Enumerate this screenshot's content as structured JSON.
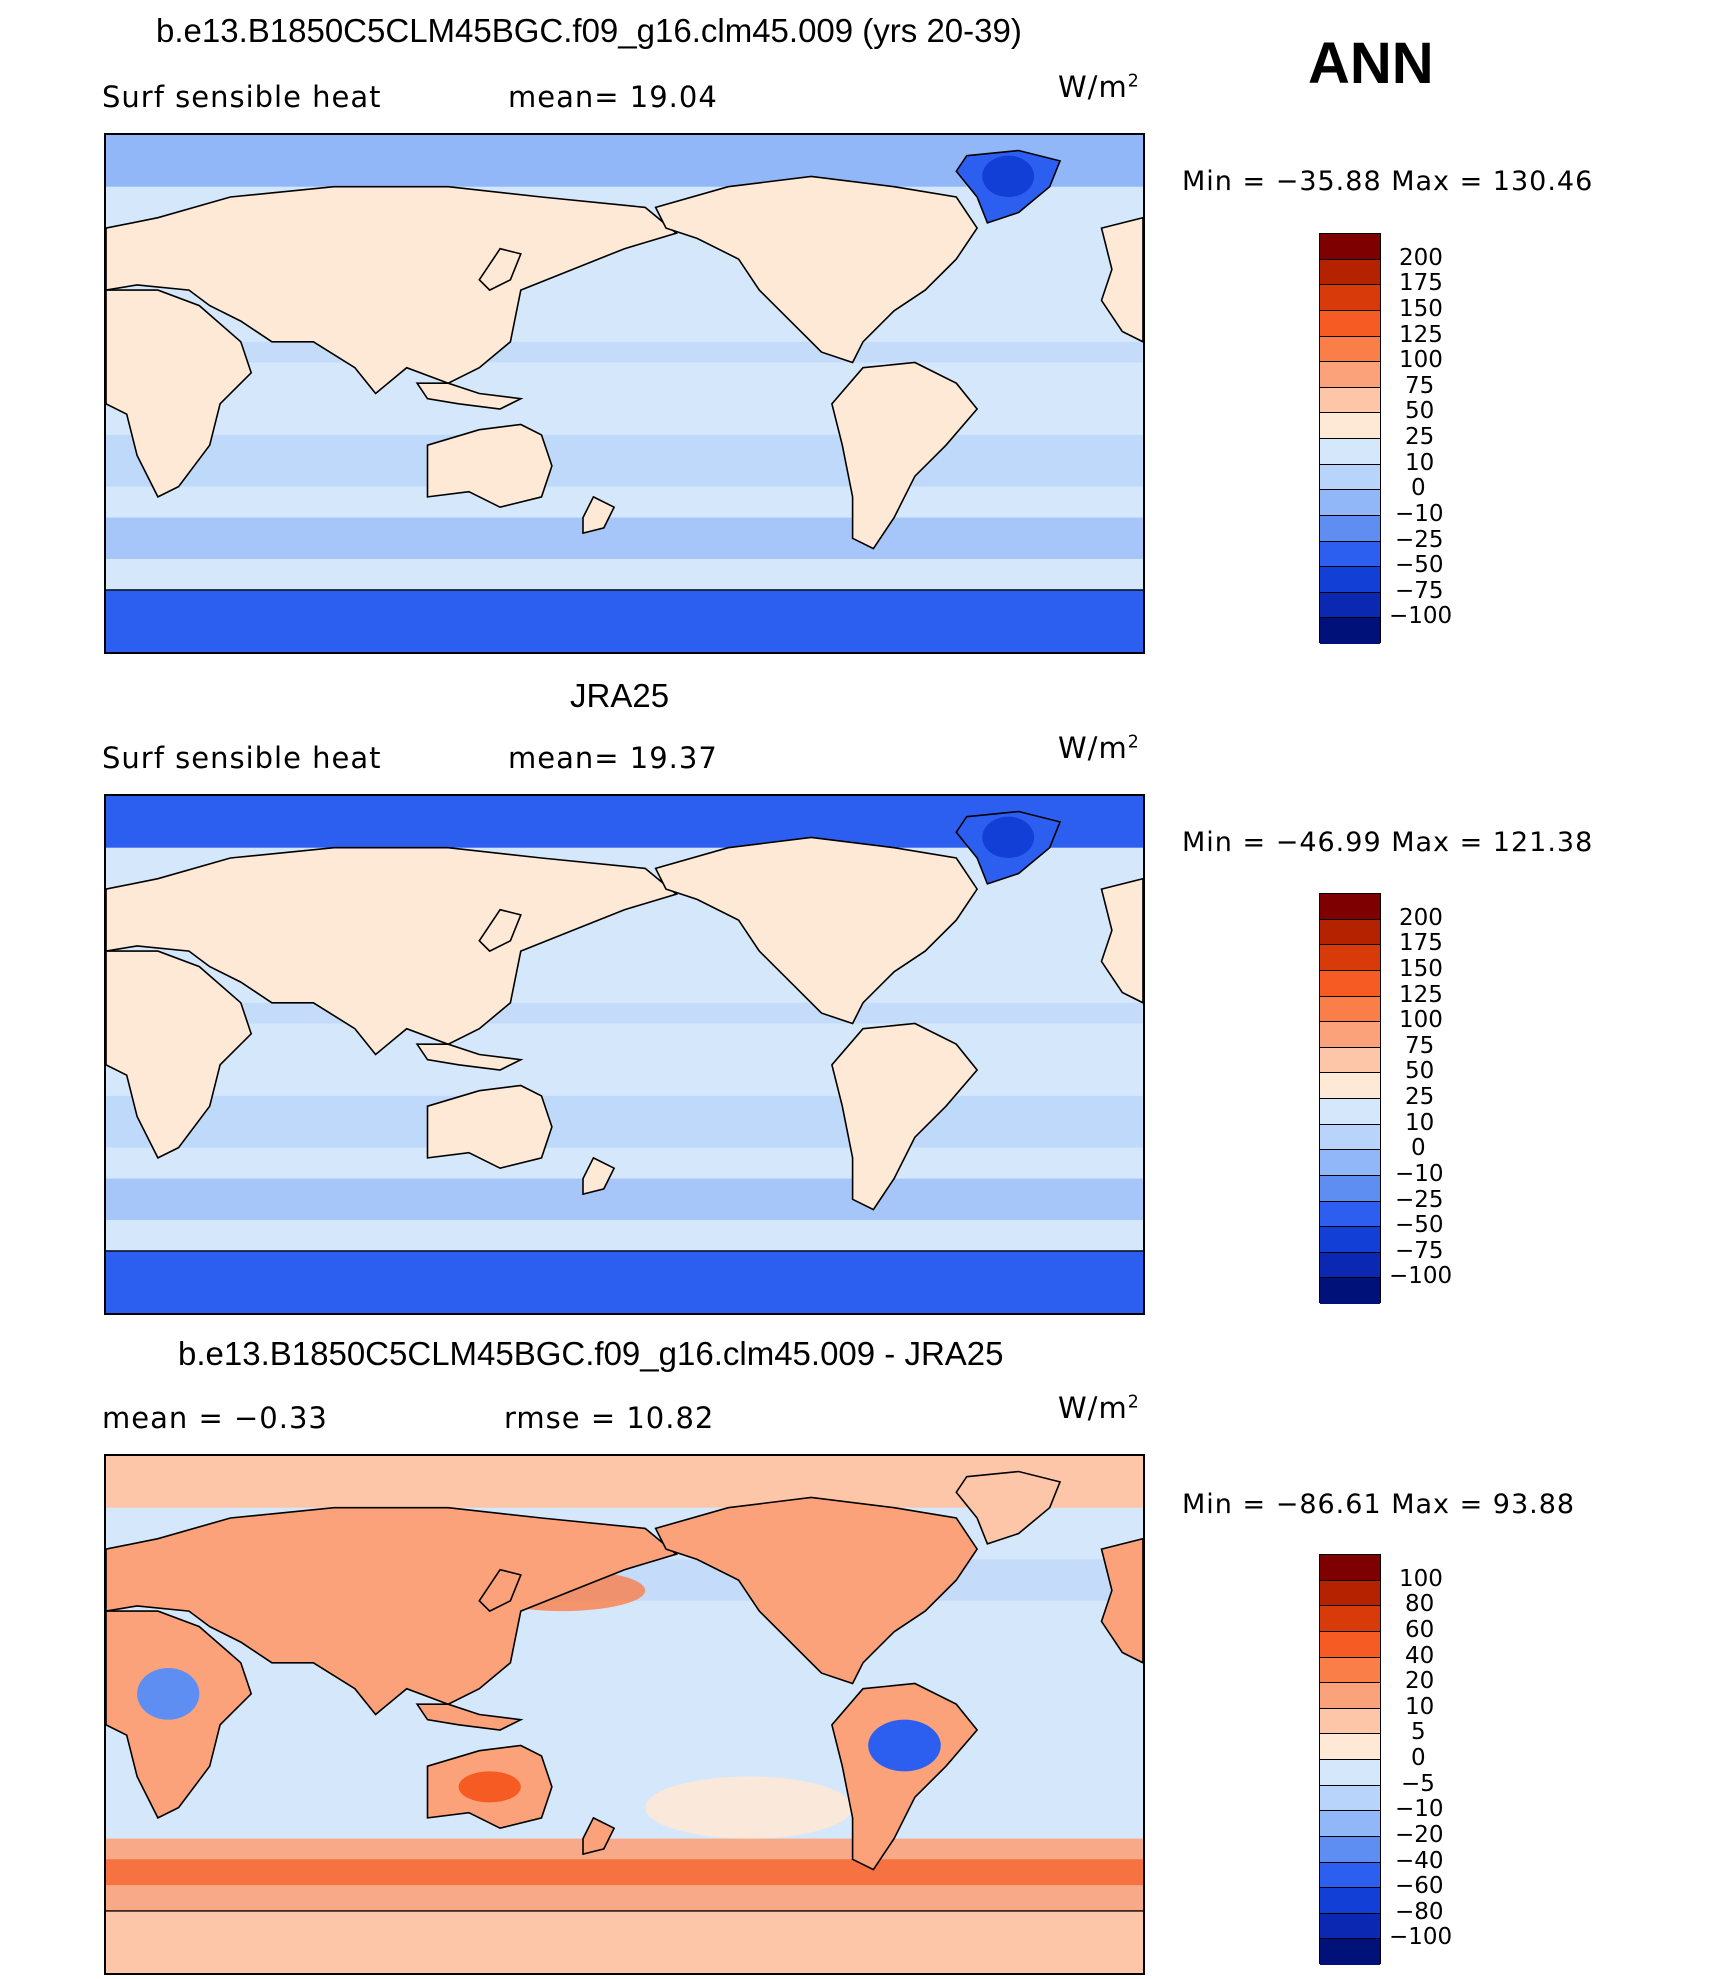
{
  "season": "ANN",
  "units_base": "W/m",
  "units_exp": "2",
  "panels": [
    {
      "id": "model",
      "title": "b.e13.B1850C5CLM45BGC.f09_g16.clm45.009 (yrs 20-39)",
      "left_label": "Surf  sensible  heat",
      "center_label": "mean=   19.04",
      "stats": "Min  =  −35.88  Max  =  130.46",
      "levels": [
        "200",
        "175",
        "150",
        "125",
        "100",
        "75",
        "50",
        "25",
        "10",
        "0",
        "−10",
        "−25",
        "−50",
        "−75",
        "−100"
      ],
      "colors": [
        "#7f0000",
        "#b52200",
        "#d93a0a",
        "#f55b22",
        "#fa7e48",
        "#fca27a",
        "#fdc6a8",
        "#fee8d6",
        "#d5e8fb",
        "#b9d4fa",
        "#92b7f8",
        "#5f8ef3",
        "#2c5ff0",
        "#123fd6",
        "#0a28b2",
        "#00127a"
      ],
      "ocean": "#d5e8fb",
      "land": "#fee8d6",
      "polar_north": "#92b7f8",
      "polar_south": "#2c5ff0",
      "greenland": "#2c5ff0"
    },
    {
      "id": "obs",
      "title": "JRA25",
      "left_label": "Surf  sensible  heat",
      "center_label": "mean=   19.37",
      "stats": "Min  =  −46.99  Max  =  121.38",
      "levels": [
        "200",
        "175",
        "150",
        "125",
        "100",
        "75",
        "50",
        "25",
        "10",
        "0",
        "−10",
        "−25",
        "−50",
        "−75",
        "−100"
      ],
      "colors": [
        "#7f0000",
        "#b52200",
        "#d93a0a",
        "#f55b22",
        "#fa7e48",
        "#fca27a",
        "#fdc6a8",
        "#fee8d6",
        "#d5e8fb",
        "#b9d4fa",
        "#92b7f8",
        "#5f8ef3",
        "#2c5ff0",
        "#123fd6",
        "#0a28b2",
        "#00127a"
      ],
      "ocean": "#d5e8fb",
      "land": "#fee8d6",
      "polar_north": "#2c5ff0",
      "polar_south": "#2c5ff0",
      "greenland": "#2c5ff0"
    },
    {
      "id": "diff",
      "title": "b.e13.B1850C5CLM45BGC.f09_g16.clm45.009 - JRA25",
      "left_label": "mean  =    −0.33",
      "center_label": "rmse  =    10.82",
      "stats": "Min  =  −86.61  Max  =   93.88",
      "levels": [
        "100",
        "80",
        "60",
        "40",
        "20",
        "10",
        "5",
        "0",
        "−5",
        "−10",
        "−20",
        "−40",
        "−60",
        "−80",
        "−100"
      ],
      "colors": [
        "#7f0000",
        "#b52200",
        "#d93a0a",
        "#f55b22",
        "#fa7e48",
        "#fca27a",
        "#fdc6a8",
        "#fee8d6",
        "#d5e8fb",
        "#b9d4fa",
        "#92b7f8",
        "#5f8ef3",
        "#2c5ff0",
        "#123fd6",
        "#0a28b2",
        "#00127a"
      ],
      "ocean": "#d5e8fb",
      "land": "#fca27a",
      "polar_north": "#fdc6a8",
      "polar_south": "#fdc6a8",
      "greenland": "#fdc6a8"
    }
  ]
}
